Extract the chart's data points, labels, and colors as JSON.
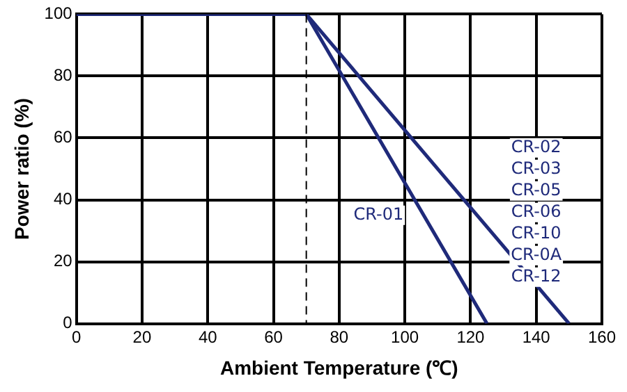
{
  "chart_data": {
    "type": "line",
    "xlabel": "Ambient Temperature (℃)",
    "ylabel": "Power ratio (%)",
    "series": [
      {
        "name": "CR-01",
        "color": "#1f2a7a",
        "x": [
          0,
          70,
          125
        ],
        "values": [
          100,
          100,
          0
        ]
      },
      {
        "name": "CR-02\nCR-03\nCR-05\nCR-06\nCR-10\nCR-0A\nCR-12",
        "color": "#1f2a7a",
        "x": [
          70,
          150
        ],
        "values": [
          100,
          0
        ]
      }
    ],
    "xlim": [
      0,
      160
    ],
    "xticks": [
      0,
      20,
      40,
      60,
      80,
      100,
      120,
      140,
      160
    ],
    "ylim": [
      0,
      100
    ],
    "yticks": [
      0,
      20,
      40,
      60,
      80,
      100
    ],
    "ref_lines": [
      {
        "axis": "x",
        "value": 70,
        "line_style": "dashed",
        "color": "#000000"
      }
    ],
    "grid": true,
    "marker": "none",
    "line_style": "solid"
  }
}
